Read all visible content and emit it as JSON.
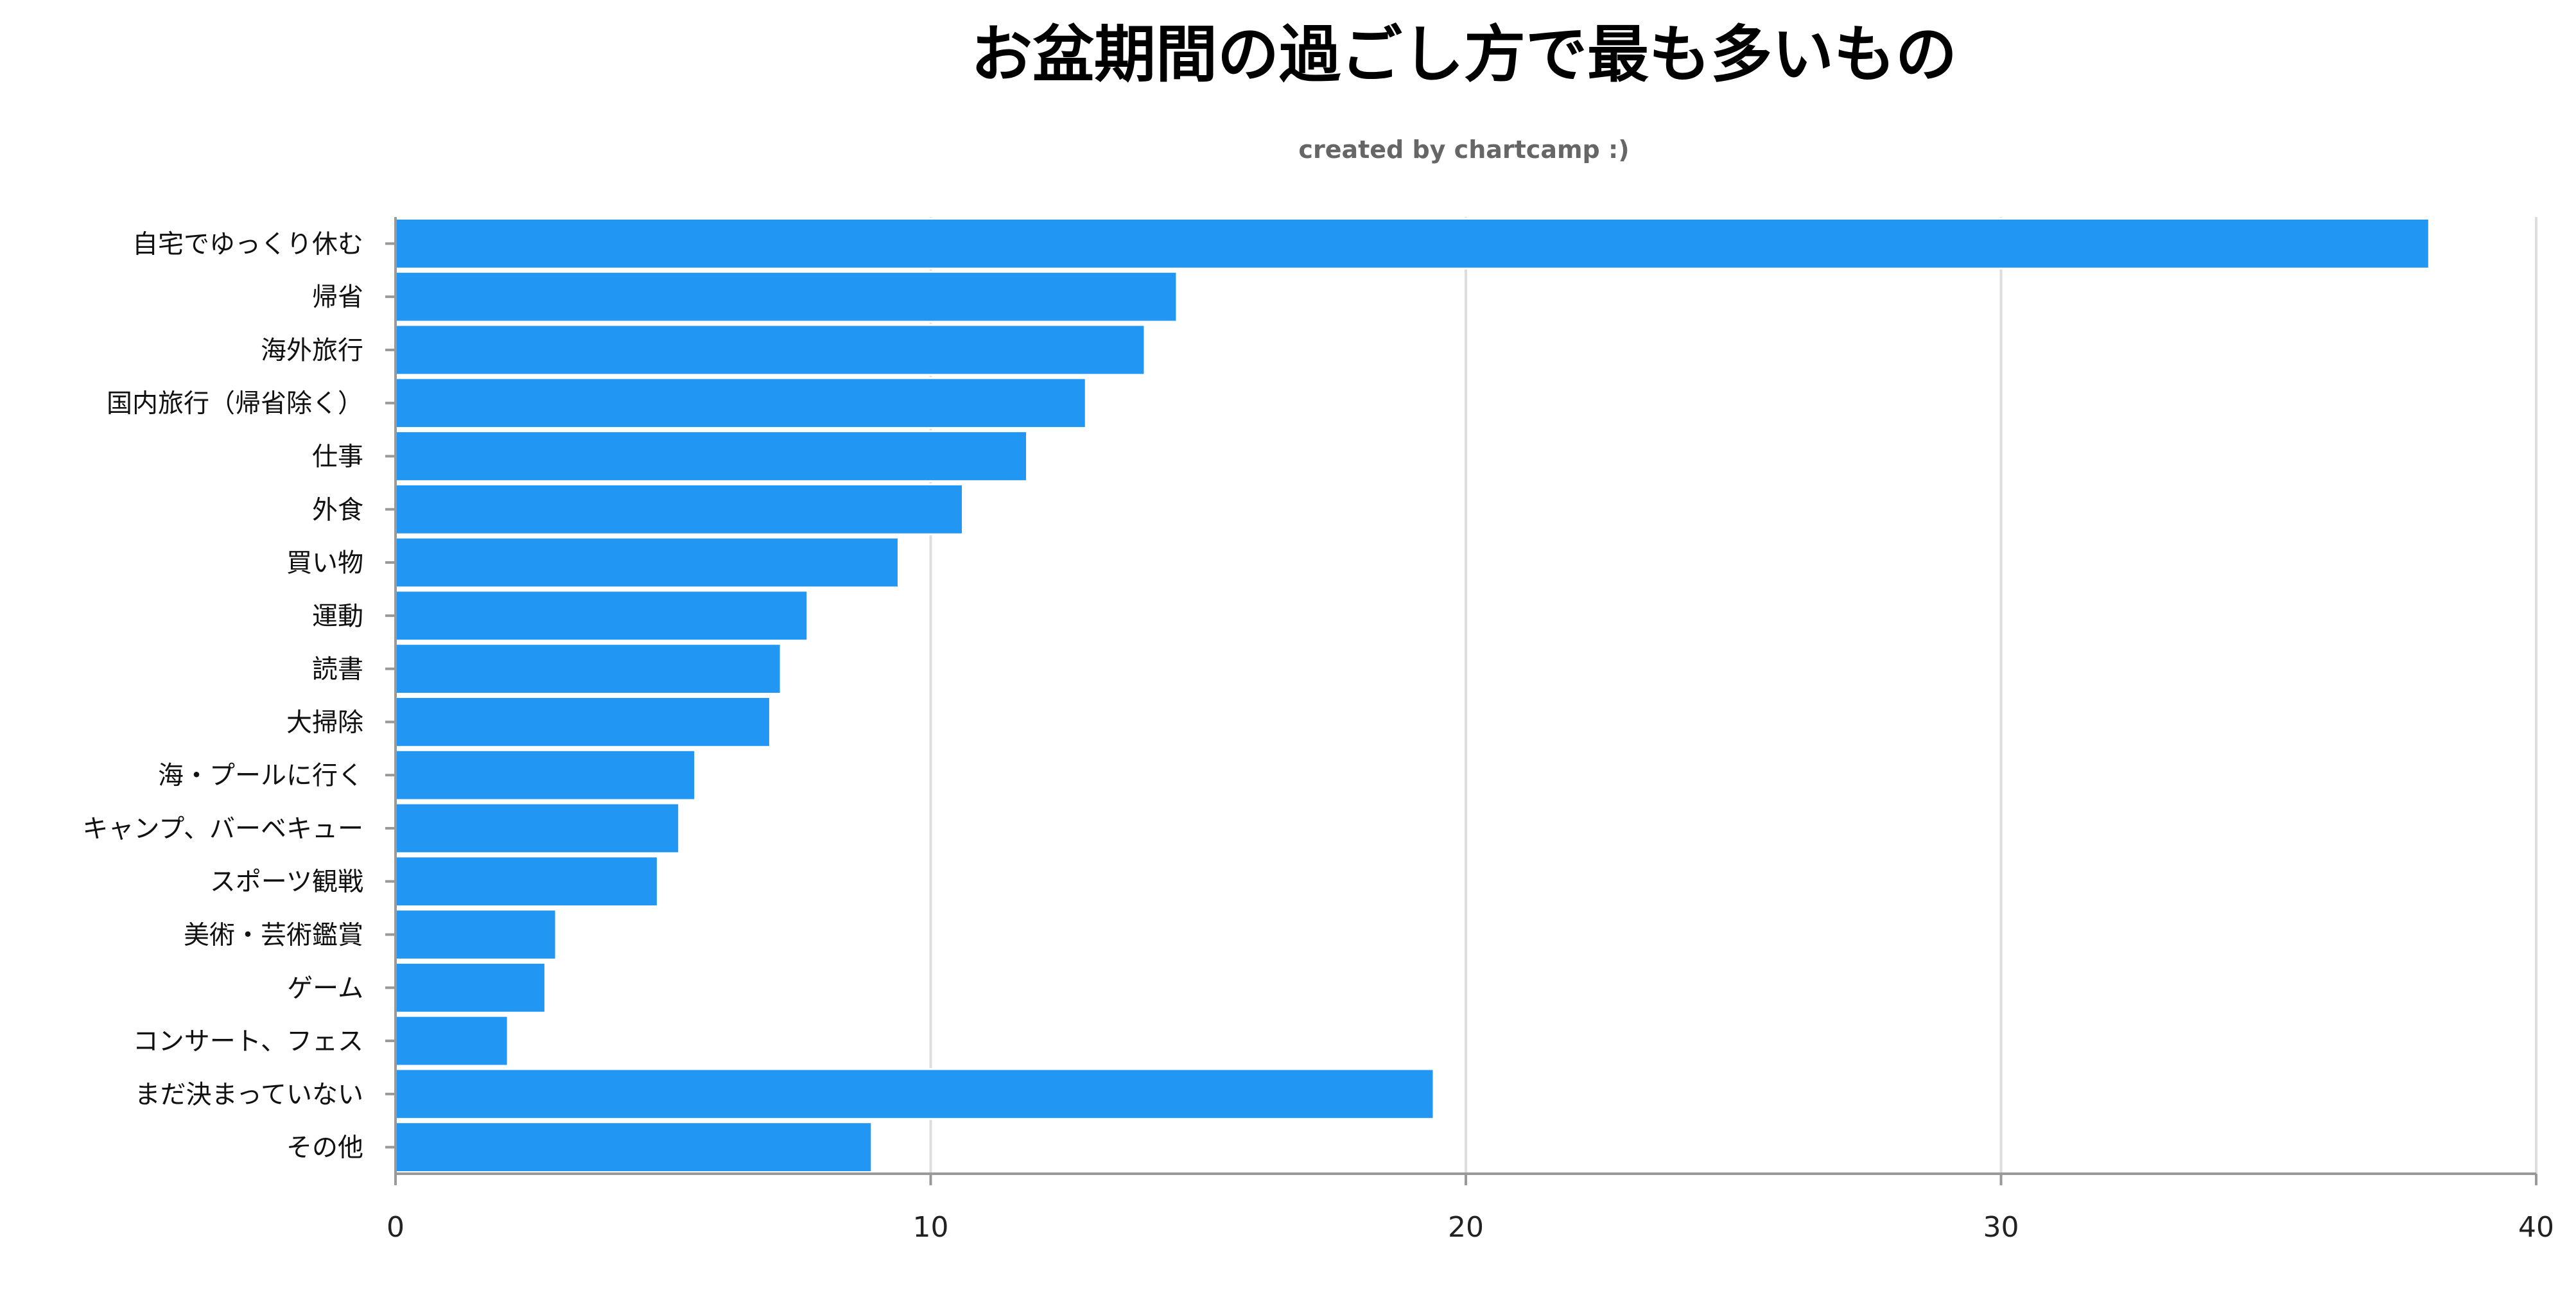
{
  "chart_data": {
    "type": "bar",
    "orientation": "horizontal",
    "title": "お盆期間の過ごし方で最も多いもの",
    "subtitle": "created by chartcamp :)",
    "categories": [
      "自宅でゆっくり休む",
      "帰省",
      "海外旅行",
      "国内旅行（帰省除く）",
      "仕事",
      "外食",
      "買い物",
      "運動",
      "読書",
      "大掃除",
      "海・プールに行く",
      "キャンプ、バーベキュー",
      "スポーツ観戦",
      "美術・芸術鑑賞",
      "ゲーム",
      "コンサート、フェス",
      "まだ決まっていない",
      "その他"
    ],
    "values": [
      38.0,
      14.6,
      14.0,
      12.9,
      11.8,
      10.6,
      9.4,
      7.7,
      7.2,
      7.0,
      5.6,
      5.3,
      4.9,
      3.0,
      2.8,
      2.1,
      19.4,
      8.9
    ],
    "xlim": [
      0,
      40
    ],
    "xticks": [
      "0",
      "10",
      "20",
      "30",
      "40"
    ],
    "xlabel": "",
    "ylabel": "",
    "grid": true,
    "legend": "none",
    "colors": {
      "bar": "#2196f3"
    }
  }
}
